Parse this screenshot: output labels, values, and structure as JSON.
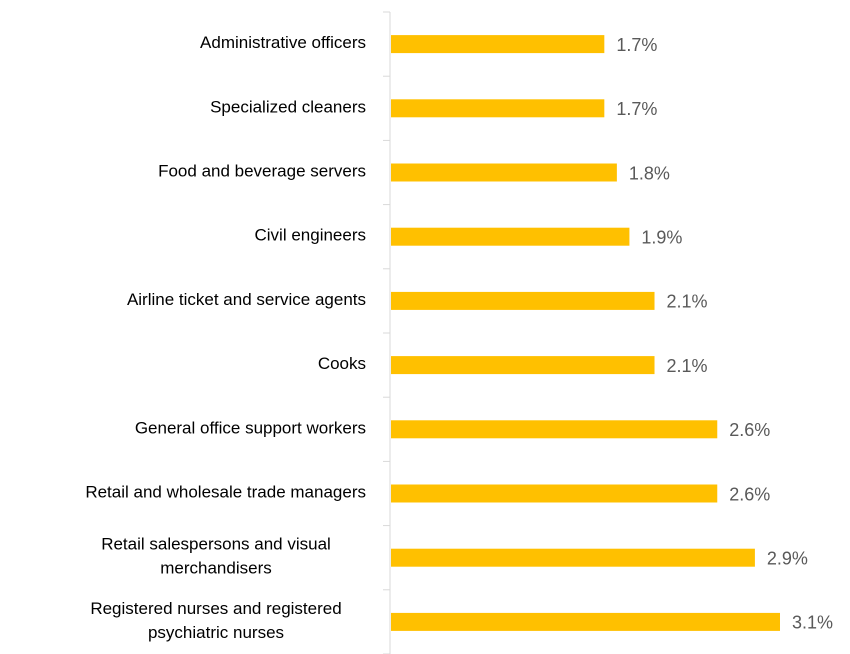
{
  "chart_data": {
    "type": "barh",
    "categories": [
      "Administrative officers",
      "Specialized cleaners",
      "Food and beverage servers",
      "Civil engineers",
      "Airline ticket and service agents",
      "Cooks",
      "General office support workers",
      "Retail and wholesale trade managers",
      "Retail salespersons and visual\nmerchandisers",
      "Registered nurses and registered\npsychiatric nurses"
    ],
    "values": [
      1.7,
      1.7,
      1.8,
      1.9,
      2.1,
      2.1,
      2.6,
      2.6,
      2.9,
      3.1
    ],
    "value_labels": [
      "1.7%",
      "1.7%",
      "1.8%",
      "1.9%",
      "2.1%",
      "2.1%",
      "2.6%",
      "2.6%",
      "2.9%",
      "3.1%"
    ],
    "color": "#ffc000"
  }
}
